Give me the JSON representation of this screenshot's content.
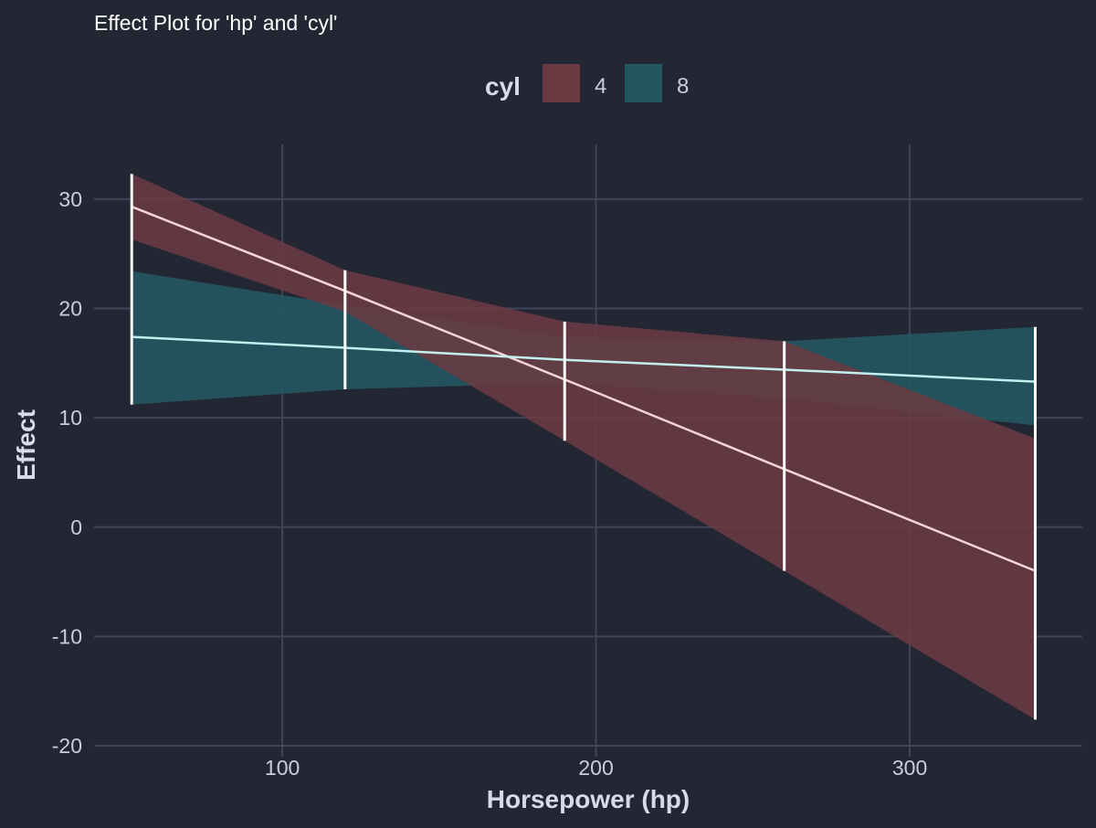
{
  "chart_data": {
    "type": "line",
    "title": "Effect Plot for 'hp' and 'cyl'",
    "xlabel": "Horsepower (hp)",
    "ylabel": "Effect",
    "xlim": [
      40,
      355
    ],
    "ylim": [
      -21,
      35
    ],
    "xticks": [
      100,
      200,
      300
    ],
    "yticks": [
      -20,
      -10,
      0,
      10,
      20,
      30
    ],
    "xtick_labels": [
      "100",
      "200",
      "300"
    ],
    "ytick_labels": [
      "-20",
      "-10",
      "0",
      "10",
      "20",
      "30"
    ],
    "grid": true,
    "legend": {
      "title": "cyl",
      "position": "top"
    },
    "x": [
      52,
      120,
      190,
      260,
      340
    ],
    "series": [
      {
        "name": "4",
        "color": "#6a3a43",
        "line_color": "#f6d5da",
        "fit": [
          29.3,
          21.6,
          13.5,
          5.3,
          -4.0
        ],
        "lower": [
          26.3,
          19.7,
          7.9,
          -4.0,
          -17.6
        ],
        "upper": [
          32.3,
          23.5,
          18.8,
          17.0,
          8.1
        ]
      },
      {
        "name": "8",
        "color": "#245661",
        "line_color": "#c3eff0",
        "fit": [
          17.4,
          16.4,
          15.3,
          14.4,
          13.3
        ],
        "lower": [
          11.2,
          12.6,
          13.2,
          11.8,
          9.3
        ],
        "upper": [
          23.4,
          20.3,
          17.4,
          17.0,
          18.3
        ]
      }
    ]
  }
}
